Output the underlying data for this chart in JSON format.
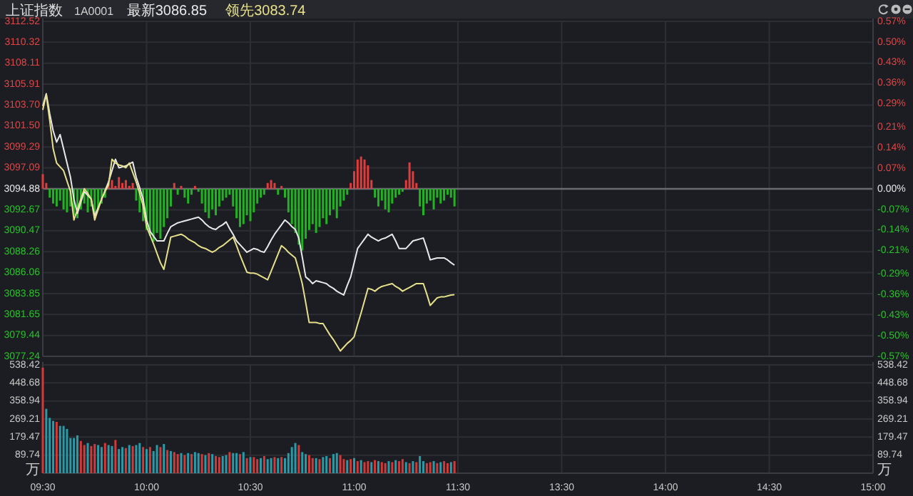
{
  "chart_data": [
    {
      "type": "line",
      "title": "上证指数",
      "subtitle": "1A0001",
      "legend": "top left",
      "grid": true,
      "tick_labels": "y",
      "categories": [
        null,
        null,
        null,
        null,
        null,
        null,
        null,
        null,
        null,
        null,
        null,
        null,
        null,
        null,
        null,
        null,
        null,
        null,
        null,
        null,
        null,
        null,
        null,
        null,
        null,
        null,
        null,
        null,
        null,
        null,
        null,
        null,
        null,
        null,
        null,
        null,
        null,
        null,
        null,
        null,
        null,
        null,
        null,
        null,
        null,
        null,
        null,
        null,
        null,
        null,
        null,
        null,
        null,
        null,
        null,
        null,
        null,
        null,
        null,
        null,
        null,
        null,
        null,
        null,
        null,
        null,
        null,
        null,
        null,
        null,
        null,
        null,
        null,
        null,
        null,
        null,
        null,
        null,
        null,
        null,
        null,
        null,
        null,
        null,
        null,
        null,
        null,
        null,
        null,
        null,
        null,
        null,
        null,
        null,
        null,
        null,
        null,
        null,
        null,
        null,
        null,
        null,
        null,
        null,
        null,
        null,
        null,
        null,
        null,
        null,
        null,
        null,
        null,
        null,
        null,
        null,
        null,
        null,
        null,
        null,
        null,
        null,
        null,
        null,
        null,
        null,
        null,
        null,
        null,
        null,
        null,
        null,
        null,
        null,
        null,
        null,
        null,
        null,
        null,
        null,
        null,
        null,
        null,
        null,
        null,
        null,
        null,
        null,
        null,
        null,
        null,
        null,
        null,
        null,
        null,
        null,
        null,
        null,
        null,
        null,
        null,
        null,
        null,
        null,
        null,
        null,
        null,
        null,
        null,
        null,
        null,
        null,
        null,
        null,
        null,
        null,
        null,
        null,
        null,
        null,
        null,
        null,
        null,
        null,
        null,
        null,
        null,
        null,
        null,
        null,
        null,
        null,
        null,
        null,
        null,
        null,
        null,
        null,
        null,
        null,
        null,
        null,
        null,
        null,
        null,
        null,
        null,
        null,
        null,
        null,
        null,
        null,
        null,
        null,
        null,
        null,
        null,
        null,
        null,
        null,
        null,
        null,
        null,
        null,
        null,
        null,
        null,
        null,
        null,
        null,
        null,
        null,
        null,
        null,
        null,
        null,
        null,
        null,
        null,
        null,
        null
      ],
      "ylim": [
        3077.24,
        3112.52
      ],
      "yticks": [
        3077.24,
        3079.44,
        3081.65,
        3083.85,
        3086.06,
        3088.26,
        3090.47,
        3092.67,
        3094.88,
        3097.09,
        3099.29,
        {
          "value": 3101.5,
          "label": "3101.50"
        },
        {
          "value": 3103.7,
          "label": "3103.70"
        },
        3105.91,
        3108.11,
        3110.32,
        3112.52
      ],
      "y2lim": [
        -0.57,
        0.57
      ],
      "y2ticks": [
        {
          "value": -0.57,
          "label": "-0.57%"
        },
        {
          "value": -0.5,
          "label": "-0.50%"
        },
        {
          "value": -0.43,
          "label": "-0.43%"
        },
        {
          "value": -0.36,
          "label": "-0.36%"
        },
        {
          "value": -0.29,
          "label": "-0.29%"
        },
        {
          "value": -0.21,
          "label": "-0.21%"
        },
        {
          "value": -0.14,
          "label": "-0.14%"
        },
        {
          "value": -0.07,
          "label": "-0.07%"
        },
        {
          "value": 0,
          "label": "0.00%"
        },
        {
          "value": 0.07,
          "label": "0.07%"
        },
        {
          "value": 0.14,
          "label": "0.14%"
        },
        {
          "value": 0.21,
          "label": "0.21%"
        },
        {
          "value": 0.29,
          "label": "0.29%"
        },
        {
          "value": 0.36,
          "label": "0.36%"
        },
        {
          "value": 0.43,
          "label": "0.43%"
        },
        {
          "value": 0.5,
          "label": "0.50%"
        },
        {
          "value": 0.57,
          "label": "0.57%"
        }
      ],
      "ref_lines": [
        {
          "axis": "y2",
          "value": 0,
          "color": "#6a6c72"
        }
      ],
      "series": [
        {
          "type": "bar",
          "axis": "y2",
          "values": [
            0.05,
            0.02,
            -0.03,
            -0.05,
            -0.06,
            -0.04,
            -0.07,
            -0.08,
            -0.06,
            -0.09,
            -0.1,
            -0.07,
            -0.05,
            -0.08,
            -0.06,
            -0.09,
            -0.07,
            -0.05,
            -0.03,
            0.02,
            0.03,
            0.01,
            0.04,
            0.02,
            0.03,
            0.01,
            0.02,
            -0.04,
            -0.08,
            -0.11,
            -0.14,
            -0.16,
            -0.18,
            -0.15,
            -0.17,
            -0.13,
            -0.1,
            -0.06,
            0.02,
            -0.02,
            0.01,
            -0.03,
            -0.05,
            -0.02,
            0.01,
            -0.01,
            -0.05,
            -0.08,
            -0.1,
            -0.07,
            -0.09,
            -0.06,
            -0.04,
            -0.03,
            -0.02,
            -0.06,
            -0.1,
            -0.13,
            -0.12,
            -0.09,
            -0.11,
            -0.08,
            -0.05,
            -0.03,
            -0.02,
            0.02,
            0.03,
            0.02,
            -0.02,
            0.01,
            -0.03,
            -0.08,
            -0.12,
            -0.15,
            -0.19,
            -0.21,
            -0.17,
            -0.14,
            -0.12,
            -0.15,
            -0.13,
            -0.1,
            -0.12,
            -0.09,
            -0.07,
            -0.1,
            -0.06,
            -0.04,
            -0.02,
            0.02,
            0.06,
            0.1,
            0.11,
            0.1,
            0.08,
            0.03,
            -0.03,
            -0.06,
            -0.04,
            -0.07,
            -0.08,
            -0.05,
            -0.03,
            -0.02,
            -0.01,
            0.03,
            0.09,
            0.06,
            0.02,
            -0.06,
            -0.09,
            -0.05,
            -0.04,
            -0.07,
            -0.03,
            -0.05,
            -0.04,
            -0.02,
            -0.03,
            -0.06,
            null,
            null,
            null,
            null,
            null,
            null,
            null,
            null,
            null,
            null,
            null,
            null,
            null,
            null,
            null,
            null,
            null,
            null,
            null,
            null,
            null,
            null,
            null,
            null,
            null,
            null,
            null,
            null,
            null,
            null,
            null,
            null,
            null,
            null,
            null,
            null,
            null,
            null,
            null,
            null,
            null,
            null,
            null,
            null,
            null,
            null,
            null,
            null,
            null,
            null,
            null,
            null,
            null,
            null,
            null,
            null,
            null,
            null,
            null,
            null,
            null,
            null,
            null,
            null,
            null,
            null,
            null,
            null,
            null,
            null,
            null,
            null,
            null,
            null,
            null,
            null,
            null,
            null,
            null,
            null,
            null,
            null,
            null,
            null,
            null,
            null,
            null,
            null,
            null,
            null,
            null,
            null,
            null,
            null,
            null,
            null,
            null,
            null,
            null,
            null,
            null,
            null,
            null,
            null,
            null,
            null,
            null,
            null,
            null,
            null,
            null,
            null,
            null,
            null,
            null,
            null,
            null,
            null,
            null,
            null,
            null
          ],
          "colors": [
            "#e03c3c",
            "#e03c3c",
            "#22b322",
            "#22b322",
            "#22b322",
            "#22b322",
            "#22b322",
            "#22b322",
            "#22b322",
            "#22b322",
            "#22b322",
            "#22b322",
            "#22b322",
            "#22b322",
            "#22b322",
            "#22b322",
            "#22b322",
            "#22b322",
            "#22b322",
            "#e03c3c",
            "#e03c3c",
            "#e03c3c",
            "#e03c3c",
            "#e03c3c",
            "#e03c3c",
            "#e03c3c",
            "#e03c3c",
            "#22b322",
            "#22b322",
            "#22b322",
            "#22b322",
            "#22b322",
            "#22b322",
            "#22b322",
            "#22b322",
            "#22b322",
            "#22b322",
            "#22b322",
            "#e03c3c",
            "#22b322",
            "#e03c3c",
            "#22b322",
            "#22b322",
            "#22b322",
            "#e03c3c",
            "#22b322",
            "#22b322",
            "#22b322",
            "#22b322",
            "#22b322",
            "#22b322",
            "#22b322",
            "#22b322",
            "#22b322",
            "#22b322",
            "#22b322",
            "#22b322",
            "#22b322",
            "#22b322",
            "#22b322",
            "#22b322",
            "#22b322",
            "#22b322",
            "#22b322",
            "#22b322",
            "#e03c3c",
            "#e03c3c",
            "#e03c3c",
            "#22b322",
            "#e03c3c",
            "#22b322",
            "#22b322",
            "#22b322",
            "#22b322",
            "#22b322",
            "#22b322",
            "#22b322",
            "#22b322",
            "#22b322",
            "#22b322",
            "#22b322",
            "#22b322",
            "#22b322",
            "#22b322",
            "#22b322",
            "#22b322",
            "#22b322",
            "#22b322",
            "#22b322",
            "#e03c3c",
            "#e03c3c",
            "#e03c3c",
            "#e03c3c",
            "#e03c3c",
            "#e03c3c",
            "#e03c3c",
            "#22b322",
            "#22b322",
            "#22b322",
            "#22b322",
            "#22b322",
            "#22b322",
            "#22b322",
            "#22b322",
            "#22b322",
            "#e03c3c",
            "#e03c3c",
            "#e03c3c",
            "#e03c3c",
            "#22b322",
            "#22b322",
            "#22b322",
            "#22b322",
            "#22b322",
            "#22b322",
            "#22b322",
            "#22b322",
            "#22b322",
            "#22b322",
            "#22b322",
            null,
            null,
            null,
            null,
            null,
            null,
            null,
            null,
            null,
            null,
            null,
            null,
            null,
            null,
            null,
            null,
            null,
            null,
            null,
            null,
            null,
            null,
            null,
            null,
            null,
            null,
            null,
            null,
            null,
            null,
            null,
            null,
            null,
            null,
            null,
            null,
            null,
            null,
            null,
            null,
            null,
            null,
            null,
            null,
            null,
            null,
            null,
            null,
            null,
            null,
            null,
            null,
            null,
            null,
            null,
            null,
            null,
            null,
            null,
            null,
            null,
            null,
            null,
            null,
            null,
            null,
            null,
            null,
            null,
            null,
            null,
            null,
            null,
            null,
            null,
            null,
            null,
            null,
            null,
            null,
            null,
            null,
            null,
            null,
            null,
            null,
            null,
            null,
            null,
            null,
            null,
            null,
            null,
            null,
            null,
            null,
            null,
            null,
            null,
            null,
            null,
            null,
            null,
            null,
            null,
            null,
            null,
            null,
            null,
            null,
            null,
            null,
            null,
            null,
            null,
            null,
            null,
            null,
            null,
            null,
            null
          ]
        },
        {
          "name": "最新3086.85",
          "color": "#e8e8e8",
          "values": [
            3103.6,
            3104.9,
            3102.8,
            3101.0,
            3099.8,
            3100.6,
            3099.1,
            3097.6,
            3096.1,
            3093.8,
            3092.3,
            3093.5,
            3094.6,
            3094.2,
            3093.8,
            3092.0,
            3092.9,
            3093.8,
            3094.7,
            3095.6,
            3096.8,
            3098.0,
            3097.1,
            3097.2,
            3097.3,
            3097.5,
            3097.7,
            3096.1,
            3095.0,
            3093.8,
            3091.6,
            3090.4,
            3089.9,
            3089.4,
            3089.4,
            3089.4,
            3090.2,
            3090.9,
            3091.1,
            3091.3,
            3091.4,
            3091.5,
            3091.6,
            3091.7,
            3091.8,
            3091.9,
            3091.6,
            3091.2,
            3090.9,
            3090.7,
            3090.6,
            3090.9,
            3091.1,
            3091.4,
            3090.7,
            3090.1,
            3089.4,
            3089.0,
            3088.6,
            3088.2,
            3088.4,
            3088.6,
            3088.5,
            3088.3,
            3088.2,
            3088.8,
            3089.5,
            3090.1,
            3090.6,
            3091.1,
            3091.6,
            3091.3,
            3090.9,
            3090.6,
            3089.7,
            3087.7,
            3085.6,
            3085.3,
            3084.9,
            3085.2,
            3085.1,
            3085.0,
            3084.9,
            3084.6,
            3084.4,
            3084.1,
            3083.9,
            3083.7,
            3084.7,
            3085.6,
            3087.1,
            3088.6,
            3089.1,
            3089.6,
            3090.1,
            3089.8,
            3089.6,
            3089.4,
            3089.6,
            3089.7,
            3089.9,
            3090.1,
            3089.4,
            3088.6,
            3088.6,
            3088.6,
            3089.0,
            3089.4,
            3089.5,
            3089.6,
            3089.7,
            3088.6,
            3087.4,
            3087.5,
            3087.6,
            3087.6,
            3087.6,
            3087.4,
            3087.1,
            3086.85,
            null,
            null,
            null,
            null,
            null,
            null,
            null,
            null,
            null,
            null,
            null,
            null,
            null,
            null,
            null,
            null,
            null,
            null,
            null,
            null,
            null,
            null,
            null,
            null,
            null,
            null,
            null,
            null,
            null,
            null,
            null,
            null,
            null,
            null,
            null,
            null,
            null,
            null,
            null,
            null,
            null,
            null,
            null,
            null,
            null,
            null,
            null,
            null,
            null,
            null,
            null,
            null,
            null,
            null,
            null,
            null,
            null,
            null,
            null,
            null,
            null,
            null,
            null,
            null,
            null,
            null,
            null,
            null,
            null,
            null,
            null,
            null,
            null,
            null,
            null,
            null,
            null,
            null,
            null,
            null,
            null,
            null,
            null,
            null,
            null,
            null,
            null,
            null,
            null,
            null,
            null,
            null,
            null,
            null,
            null,
            null,
            null,
            null,
            null,
            null,
            null,
            null,
            null,
            null,
            null,
            null,
            null,
            null,
            null,
            null,
            null,
            null,
            null,
            null,
            null,
            null,
            null,
            null,
            null,
            null,
            null
          ]
        },
        {
          "name": "领先3083.74",
          "color": "#e6e08a",
          "values": [
            3103.2,
            3104.8,
            3102.1,
            3099.1,
            3097.6,
            3097.2,
            3096.8,
            3095.7,
            3094.6,
            3091.6,
            3092.7,
            3093.8,
            3094.9,
            3094.4,
            3093.8,
            3091.6,
            3092.7,
            3093.8,
            3094.6,
            3095.3,
            3098.0,
            3097.6,
            3097.4,
            3097.3,
            3097.1,
            3097.6,
            3096.6,
            3095.6,
            3094.4,
            3093.1,
            3090.9,
            3090.0,
            3089.1,
            3088.1,
            3087.1,
            3086.4,
            3088.1,
            3089.8,
            3089.9,
            3090.0,
            3090.1,
            3089.9,
            3089.6,
            3089.4,
            3089.2,
            3088.9,
            3088.7,
            3088.6,
            3088.4,
            3088.2,
            3088.4,
            3088.7,
            3088.9,
            3089.2,
            3089.5,
            3089.8,
            3088.9,
            3087.9,
            3087.0,
            3086.1,
            3086.0,
            3086.0,
            3085.9,
            3085.7,
            3085.5,
            3085.3,
            3086.2,
            3087.1,
            3088.0,
            3088.9,
            3088.6,
            3088.2,
            3087.9,
            3087.6,
            3086.3,
            3084.9,
            3082.9,
            3080.8,
            3080.8,
            3080.8,
            3080.7,
            3080.7,
            3080.1,
            3079.5,
            3079.0,
            3078.4,
            3077.8,
            3078.2,
            3078.6,
            3078.9,
            3079.3,
            3080.6,
            3081.8,
            3083.1,
            3084.4,
            3084.3,
            3084.1,
            3084.4,
            3084.6,
            3084.7,
            3084.8,
            3084.9,
            3084.6,
            3084.4,
            3084.1,
            3084.3,
            3084.5,
            3084.7,
            3084.9,
            3084.9,
            3084.9,
            3083.8,
            3082.6,
            3083.0,
            3083.4,
            3083.5,
            3083.5,
            3083.6,
            3083.7,
            3083.74,
            null,
            null,
            null,
            null,
            null,
            null,
            null,
            null,
            null,
            null,
            null,
            null,
            null,
            null,
            null,
            null,
            null,
            null,
            null,
            null,
            null,
            null,
            null,
            null,
            null,
            null,
            null,
            null,
            null,
            null,
            null,
            null,
            null,
            null,
            null,
            null,
            null,
            null,
            null,
            null,
            null,
            null,
            null,
            null,
            null,
            null,
            null,
            null,
            null,
            null,
            null,
            null,
            null,
            null,
            null,
            null,
            null,
            null,
            null,
            null,
            null,
            null,
            null,
            null,
            null,
            null,
            null,
            null,
            null,
            null,
            null,
            null,
            null,
            null,
            null,
            null,
            null,
            null,
            null,
            null,
            null,
            null,
            null,
            null,
            null,
            null,
            null,
            null,
            null,
            null,
            null,
            null,
            null,
            null,
            null,
            null,
            null,
            null,
            null,
            null,
            null,
            null,
            null,
            null,
            null,
            null,
            null,
            null,
            null,
            null,
            null,
            null,
            null,
            null,
            null,
            null,
            null,
            null,
            null,
            null,
            null
          ]
        }
      ]
    },
    {
      "type": "bar",
      "ylabel": "万",
      "y2label": "万",
      "grid": true,
      "categories": [
        "09:30",
        null,
        null,
        null,
        null,
        null,
        null,
        null,
        null,
        null,
        null,
        null,
        null,
        null,
        null,
        null,
        null,
        null,
        null,
        null,
        null,
        null,
        null,
        null,
        null,
        null,
        null,
        null,
        null,
        null,
        "10:00",
        null,
        null,
        null,
        null,
        null,
        null,
        null,
        null,
        null,
        null,
        null,
        null,
        null,
        null,
        null,
        null,
        null,
        null,
        null,
        null,
        null,
        null,
        null,
        null,
        null,
        null,
        null,
        null,
        null,
        "10:30",
        null,
        null,
        null,
        null,
        null,
        null,
        null,
        null,
        null,
        null,
        null,
        null,
        null,
        null,
        null,
        null,
        null,
        null,
        null,
        null,
        null,
        null,
        null,
        null,
        null,
        null,
        null,
        null,
        null,
        "11:00",
        null,
        null,
        null,
        null,
        null,
        null,
        null,
        null,
        null,
        null,
        null,
        null,
        null,
        null,
        null,
        null,
        null,
        null,
        null,
        null,
        null,
        null,
        null,
        null,
        null,
        null,
        null,
        null,
        null,
        "11:30",
        null,
        null,
        null,
        null,
        null,
        null,
        null,
        null,
        null,
        null,
        null,
        null,
        null,
        null,
        null,
        null,
        null,
        null,
        null,
        null,
        null,
        null,
        null,
        null,
        null,
        null,
        null,
        null,
        null,
        "13:30",
        null,
        null,
        null,
        null,
        null,
        null,
        null,
        null,
        null,
        null,
        null,
        null,
        null,
        null,
        null,
        null,
        null,
        null,
        null,
        null,
        null,
        null,
        null,
        null,
        null,
        null,
        null,
        null,
        null,
        "14:00",
        null,
        null,
        null,
        null,
        null,
        null,
        null,
        null,
        null,
        null,
        null,
        null,
        null,
        null,
        null,
        null,
        null,
        null,
        null,
        null,
        null,
        null,
        null,
        null,
        null,
        null,
        null,
        null,
        null,
        "14:30",
        null,
        null,
        null,
        null,
        null,
        null,
        null,
        null,
        null,
        null,
        null,
        null,
        null,
        null,
        null,
        null,
        null,
        null,
        null,
        null,
        null,
        null,
        null,
        null,
        null,
        null,
        null,
        null,
        null,
        "15:00"
      ],
      "ylim": [
        0,
        538.42
      ],
      "yticks": [
        89.74,
        179.47,
        269.21,
        358.94,
        448.68,
        538.42
      ],
      "y2lim": [
        0,
        538.42
      ],
      "y2ticks": [
        89.74,
        179.47,
        269.21,
        358.94,
        448.68,
        538.42
      ],
      "values": [
        525,
        320,
        275,
        260,
        255,
        235,
        235,
        220,
        175,
        175,
        188,
        160,
        140,
        150,
        135,
        145,
        140,
        130,
        150,
        140,
        135,
        165,
        120,
        130,
        125,
        140,
        135,
        140,
        150,
        130,
        120,
        130,
        110,
        140,
        130,
        145,
        115,
        110,
        105,
        95,
        100,
        90,
        100,
        95,
        105,
        100,
        95,
        90,
        100,
        95,
        85,
        80,
        85,
        90,
        105,
        100,
        100,
        95,
        105,
        75,
        80,
        80,
        70,
        75,
        85,
        70,
        75,
        80,
        75,
        80,
        75,
        100,
        130,
        150,
        140,
        105,
        95,
        90,
        75,
        75,
        70,
        80,
        85,
        75,
        95,
        100,
        90,
        70,
        65,
        70,
        75,
        60,
        65,
        55,
        60,
        55,
        65,
        60,
        55,
        50,
        60,
        55,
        65,
        60,
        70,
        55,
        50,
        60,
        55,
        85,
        60,
        50,
        55,
        60,
        50,
        55,
        60,
        50,
        55,
        60,
        null,
        null,
        null,
        null,
        null,
        null,
        null,
        null,
        null,
        null,
        null,
        null,
        null,
        null,
        null,
        null,
        null,
        null,
        null,
        null,
        null,
        null,
        null,
        null,
        null,
        null,
        null,
        null,
        null,
        null,
        null,
        null,
        null,
        null,
        null,
        null,
        null,
        null,
        null,
        null,
        null,
        null,
        null,
        null,
        null,
        null,
        null,
        null,
        null,
        null,
        null,
        null,
        null,
        null,
        null,
        null,
        null,
        null,
        null,
        null,
        null,
        null,
        null,
        null,
        null,
        null,
        null,
        null,
        null,
        null,
        null,
        null,
        null,
        null,
        null,
        null,
        null,
        null,
        null,
        null,
        null,
        null,
        null,
        null,
        null,
        null,
        null,
        null,
        null,
        null,
        null,
        null,
        null,
        null,
        null,
        null,
        null,
        null,
        null,
        null,
        null,
        null,
        null,
        null,
        null,
        null,
        null,
        null,
        null,
        null,
        null,
        null,
        null,
        null,
        null,
        null,
        null,
        null,
        null,
        null,
        null
      ],
      "colors": [
        "#d13a3a",
        "#2b9aa8",
        "#2b9aa8",
        "#2b9aa8",
        "#d13a3a",
        "#2b9aa8",
        "#2b9aa8",
        "#2b9aa8",
        "#2b9aa8",
        "#2b9aa8",
        "#2b9aa8",
        "#d13a3a",
        "#d13a3a",
        "#2b9aa8",
        "#d13a3a",
        "#d13a3a",
        "#2b9aa8",
        "#2b9aa8",
        "#d13a3a",
        "#2b9aa8",
        "#2b9aa8",
        "#d13a3a",
        "#2b9aa8",
        "#2b9aa8",
        "#d13a3a",
        "#2b9aa8",
        "#d13a3a",
        "#2b9aa8",
        "#2b9aa8",
        "#d13a3a",
        "#2b9aa8",
        "#d13a3a",
        "#2b9aa8",
        "#2b9aa8",
        "#d13a3a",
        "#2b9aa8",
        "#d13a3a",
        "#2b9aa8",
        "#d13a3a",
        "#d13a3a",
        "#2b9aa8",
        "#d13a3a",
        "#2b9aa8",
        "#d13a3a",
        "#2b9aa8",
        "#2b9aa8",
        "#d13a3a",
        "#2b9aa8",
        "#d13a3a",
        "#2b9aa8",
        "#d13a3a",
        "#d13a3a",
        "#2b9aa8",
        "#2b9aa8",
        "#d13a3a",
        "#2b9aa8",
        "#2b9aa8",
        "#d13a3a",
        "#2b9aa8",
        "#d13a3a",
        "#2b9aa8",
        "#d13a3a",
        "#d13a3a",
        "#2b9aa8",
        "#d13a3a",
        "#2b9aa8",
        "#2b9aa8",
        "#d13a3a",
        "#2b9aa8",
        "#d13a3a",
        "#2b9aa8",
        "#2b9aa8",
        "#2b9aa8",
        "#2b9aa8",
        "#d13a3a",
        "#2b9aa8",
        "#2b9aa8",
        "#d13a3a",
        "#d13a3a",
        "#2b9aa8",
        "#d13a3a",
        "#2b9aa8",
        "#2b9aa8",
        "#d13a3a",
        "#2b9aa8",
        "#2b9aa8",
        "#d13a3a",
        "#d13a3a",
        "#2b9aa8",
        "#d13a3a",
        "#2b9aa8",
        "#d13a3a",
        "#2b9aa8",
        "#d13a3a",
        "#d13a3a",
        "#2b9aa8",
        "#d13a3a",
        "#2b9aa8",
        "#d13a3a",
        "#d13a3a",
        "#2b9aa8",
        "#d13a3a",
        "#2b9aa8",
        "#d13a3a",
        "#d13a3a",
        "#2b9aa8",
        "#d13a3a",
        "#2b9aa8",
        "#d13a3a",
        "#2b9aa8",
        "#2b9aa8",
        "#d13a3a",
        "#d13a3a",
        "#2b9aa8",
        "#d13a3a",
        "#2b9aa8",
        "#d13a3a",
        "#d13a3a",
        "#2b9aa8",
        "#d13a3a",
        null,
        null,
        null,
        null,
        null,
        null,
        null,
        null,
        null,
        null,
        null,
        null,
        null,
        null,
        null,
        null,
        null,
        null,
        null,
        null,
        null,
        null,
        null,
        null,
        null,
        null,
        null,
        null,
        null,
        null,
        null,
        null,
        null,
        null,
        null,
        null,
        null,
        null,
        null,
        null,
        null,
        null,
        null,
        null,
        null,
        null,
        null,
        null,
        null,
        null,
        null,
        null,
        null,
        null,
        null,
        null,
        null,
        null,
        null,
        null,
        null,
        null,
        null,
        null,
        null,
        null,
        null,
        null,
        null,
        null,
        null,
        null,
        null,
        null,
        null,
        null,
        null,
        null,
        null,
        null,
        null,
        null,
        null,
        null,
        null,
        null,
        null,
        null,
        null,
        null,
        null,
        null,
        null,
        null,
        null,
        null,
        null,
        null,
        null,
        null,
        null,
        null,
        null,
        null,
        null,
        null,
        null,
        null,
        null,
        null,
        null,
        null,
        null,
        null,
        null,
        null,
        null,
        null,
        null,
        null,
        null
      ]
    }
  ]
}
